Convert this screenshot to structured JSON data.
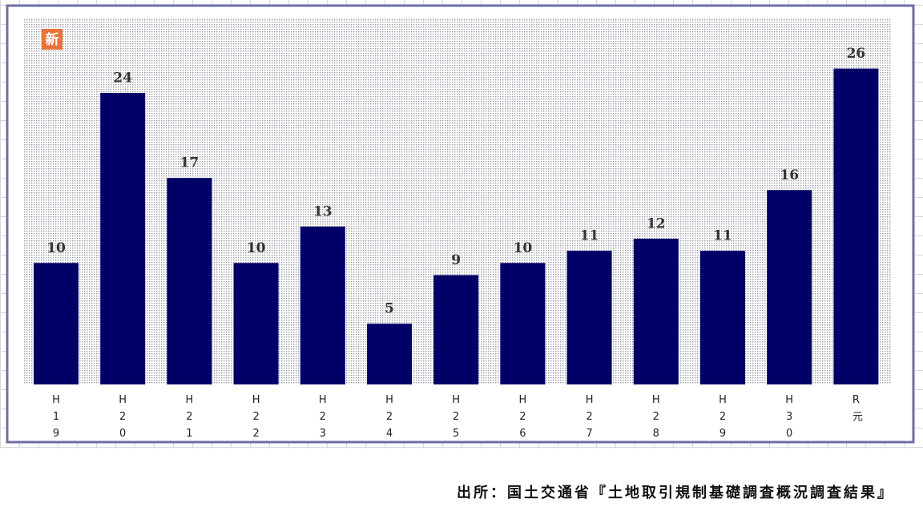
{
  "badge": "新",
  "chart_data": {
    "type": "bar",
    "categories": [
      "H19",
      "H20",
      "H21",
      "H22",
      "H23",
      "H24",
      "H25",
      "H26",
      "H27",
      "H28",
      "H29",
      "H30",
      "R元"
    ],
    "values": [
      10,
      24,
      17,
      10,
      13,
      5,
      9,
      10,
      11,
      12,
      11,
      16,
      26
    ],
    "color": "#000066",
    "ylim": [
      0,
      30
    ]
  },
  "source": "出所：国土交通省『土地取引規制基礎調査概況調査結果』"
}
